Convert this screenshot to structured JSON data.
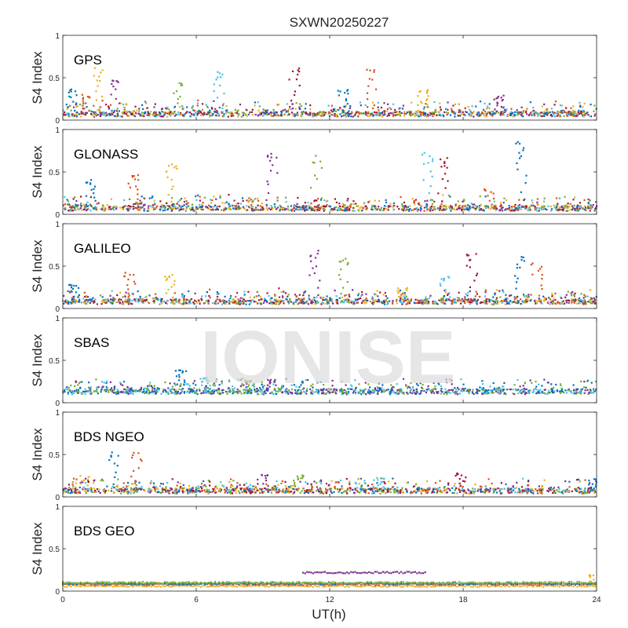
{
  "figure": {
    "title": "SXWN20250227",
    "watermark": "IONISE",
    "xlabel": "UT(h)",
    "ylabel": "S4 Index"
  },
  "chart_data": [
    {
      "type": "scatter",
      "panel_label": "GPS",
      "xlim": [
        0,
        24
      ],
      "ylim": [
        0,
        1
      ],
      "xticks": [
        "0",
        "6",
        "12",
        "18",
        "24"
      ],
      "yticks": [
        "0",
        "0.5",
        "1"
      ],
      "baseline": 0.07,
      "spikes": [
        [
          0.4,
          0.38
        ],
        [
          1.0,
          0.3
        ],
        [
          1.6,
          0.62
        ],
        [
          2.3,
          0.52
        ],
        [
          5.2,
          0.45
        ],
        [
          7.0,
          0.58
        ],
        [
          10.4,
          0.63
        ],
        [
          12.6,
          0.38
        ],
        [
          13.9,
          0.62
        ],
        [
          16.2,
          0.38
        ],
        [
          19.6,
          0.3
        ]
      ],
      "series_colors": [
        "#0072BD",
        "#D95319",
        "#EDB120",
        "#7E2F8E",
        "#77AC30",
        "#4DBEEE",
        "#A2142F"
      ],
      "grid": false
    },
    {
      "type": "scatter",
      "panel_label": "GLONASS",
      "xlim": [
        0,
        24
      ],
      "ylim": [
        0,
        1
      ],
      "xticks": [
        "0",
        "6",
        "12",
        "18",
        "24"
      ],
      "yticks": [
        "0",
        "0.5",
        "1"
      ],
      "baseline": 0.07,
      "spikes": [
        [
          1.3,
          0.42
        ],
        [
          3.2,
          0.5
        ],
        [
          4.9,
          0.65
        ],
        [
          9.4,
          0.78
        ],
        [
          11.4,
          0.7
        ],
        [
          16.4,
          0.75
        ],
        [
          17.1,
          0.7
        ],
        [
          20.6,
          0.9
        ],
        [
          19.2,
          0.3
        ]
      ],
      "series_colors": [
        "#0072BD",
        "#D95319",
        "#EDB120",
        "#7E2F8E",
        "#77AC30",
        "#4DBEEE",
        "#A2142F"
      ],
      "grid": false
    },
    {
      "type": "scatter",
      "panel_label": "GALILEO",
      "xlim": [
        0,
        24
      ],
      "ylim": [
        0,
        1
      ],
      "xticks": [
        "0",
        "6",
        "12",
        "18",
        "24"
      ],
      "yticks": [
        "0",
        "0.5",
        "1"
      ],
      "baseline": 0.08,
      "spikes": [
        [
          0.5,
          0.3
        ],
        [
          3.0,
          0.45
        ],
        [
          4.8,
          0.42
        ],
        [
          11.3,
          0.7
        ],
        [
          12.6,
          0.63
        ],
        [
          17.2,
          0.4
        ],
        [
          18.4,
          0.7
        ],
        [
          20.5,
          0.62
        ],
        [
          21.3,
          0.55
        ],
        [
          15.3,
          0.25
        ]
      ],
      "series_colors": [
        "#0072BD",
        "#D95319",
        "#EDB120",
        "#7E2F8E",
        "#77AC30",
        "#4DBEEE",
        "#A2142F"
      ],
      "grid": false
    },
    {
      "type": "scatter",
      "panel_label": "SBAS",
      "xlim": [
        0,
        24
      ],
      "ylim": [
        0,
        1
      ],
      "xticks": [
        "0",
        "6",
        "12",
        "18",
        "24"
      ],
      "yticks": [
        "0",
        "0.5",
        "1"
      ],
      "baseline": 0.13,
      "spikes": [
        [
          5.3,
          0.42
        ],
        [
          6.4,
          0.3
        ],
        [
          8.4,
          0.27
        ],
        [
          9.3,
          0.28
        ]
      ],
      "series_colors": [
        "#0072BD",
        "#4DBEEE",
        "#77AC30",
        "#7E2F8E"
      ],
      "grid": false
    },
    {
      "type": "scatter",
      "panel_label": "BDS NGEO",
      "xlim": [
        0,
        24
      ],
      "ylim": [
        0,
        1
      ],
      "xticks": [
        "0",
        "6",
        "12",
        "18",
        "24"
      ],
      "yticks": [
        "0",
        "0.5",
        "1"
      ],
      "baseline": 0.07,
      "spikes": [
        [
          2.3,
          0.55
        ],
        [
          3.3,
          0.55
        ],
        [
          1.0,
          0.25
        ],
        [
          9.0,
          0.28
        ],
        [
          10.6,
          0.27
        ],
        [
          14.2,
          0.23
        ],
        [
          17.9,
          0.28
        ],
        [
          23.9,
          0.22
        ]
      ],
      "series_colors": [
        "#0072BD",
        "#D95319",
        "#EDB120",
        "#7E2F8E",
        "#77AC30",
        "#4DBEEE",
        "#A2142F"
      ],
      "grid": false
    },
    {
      "type": "scatter",
      "panel_label": "BDS GEO",
      "xlim": [
        0,
        24
      ],
      "ylim": [
        0,
        1
      ],
      "xticks": [
        "0",
        "6",
        "12",
        "18",
        "24"
      ],
      "yticks": [
        "0",
        "0.5",
        "1"
      ],
      "baseline": 0.07,
      "levels": [
        {
          "color": "#EDB120",
          "y": 0.06
        },
        {
          "color": "#D95319",
          "y": 0.08
        },
        {
          "color": "#0072BD",
          "y": 0.09
        },
        {
          "color": "#77AC30",
          "y": 0.1
        },
        {
          "color": "#7E2F8E",
          "y": 0.22,
          "x": [
            10.8,
            16.3
          ]
        }
      ],
      "spikes": [
        [
          23.9,
          0.2
        ]
      ],
      "series_colors": [
        "#EDB120",
        "#D95319",
        "#0072BD",
        "#77AC30",
        "#7E2F8E"
      ],
      "grid": false
    }
  ]
}
